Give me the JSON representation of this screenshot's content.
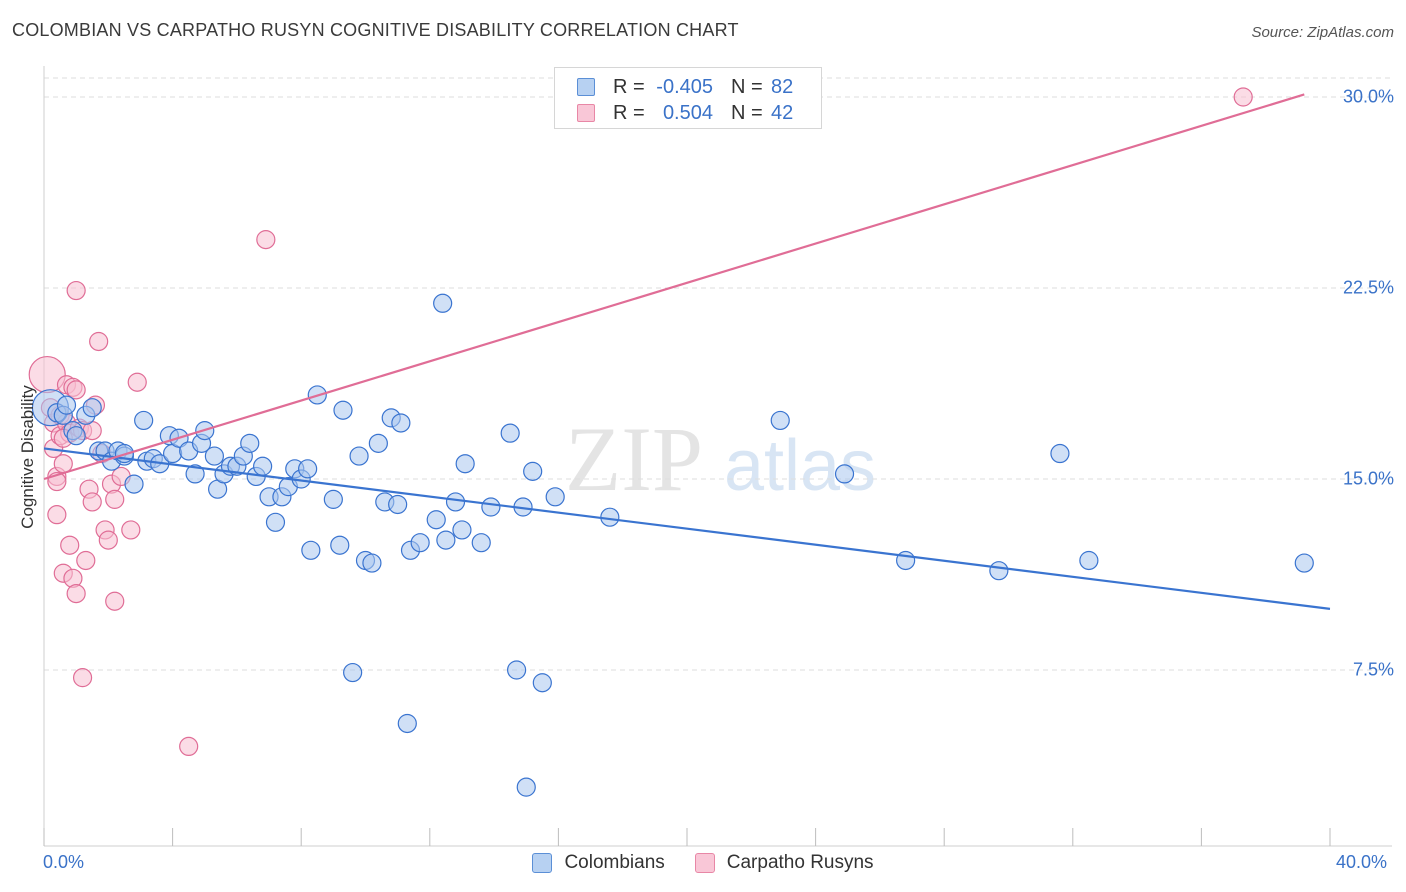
{
  "title": "COLOMBIAN VS CARPATHO RUSYN COGNITIVE DISABILITY CORRELATION CHART",
  "source": "Source: ZipAtlas.com",
  "watermark": {
    "zip": "ZIP",
    "atlas": "atlas"
  },
  "legend": {
    "rows": [
      {
        "r_label": "R =",
        "r_value": "-0.405",
        "n_label": "N =",
        "n_value": "82",
        "color": "#5b8fd6"
      },
      {
        "r_label": "R =",
        "r_value": "0.504",
        "n_label": "N =",
        "n_value": "42",
        "color": "#e887a6"
      }
    ]
  },
  "bottom_legend": [
    {
      "label": "Colombians",
      "color": "#5b8fd6"
    },
    {
      "label": "Carpatho Rusyns",
      "color": "#e887a6"
    }
  ],
  "colors": {
    "blue": "#3a74d0",
    "blue_fill": "#a9c6ee",
    "pink": "#e06d96",
    "pink_fill": "#f7bfd1",
    "grid": "#dedede",
    "tick_text": "#3a72c8"
  },
  "chart_data": {
    "type": "scatter",
    "title": "COLOMBIAN VS CARPATHO RUSYN COGNITIVE DISABILITY CORRELATION CHART",
    "xlabel": "",
    "ylabel": "Cognitive Disability",
    "xlim": [
      0,
      40
    ],
    "ylim": [
      0,
      31
    ],
    "x_tick_labels": [
      "0.0%",
      "40.0%"
    ],
    "y_ticks": [
      7.5,
      15.0,
      22.5,
      30.0
    ],
    "y_tick_labels": [
      "7.5%",
      "15.0%",
      "22.5%",
      "30.0%"
    ],
    "grid": true,
    "series": [
      {
        "name": "Colombians",
        "r": -0.405,
        "n": 82,
        "trend": {
          "x": [
            0,
            40
          ],
          "y": [
            16.2,
            9.9
          ]
        },
        "points": [
          [
            0.2,
            17.8
          ],
          [
            0.4,
            17.6
          ],
          [
            0.6,
            17.5
          ],
          [
            0.9,
            16.9
          ],
          [
            1.0,
            16.7
          ],
          [
            1.3,
            17.5
          ],
          [
            1.5,
            17.8
          ],
          [
            1.7,
            16.1
          ],
          [
            1.9,
            16.1
          ],
          [
            2.1,
            15.7
          ],
          [
            2.3,
            16.1
          ],
          [
            2.5,
            15.9
          ],
          [
            2.8,
            14.8
          ],
          [
            3.1,
            17.3
          ],
          [
            3.2,
            15.7
          ],
          [
            3.4,
            15.8
          ],
          [
            3.6,
            15.6
          ],
          [
            3.9,
            16.7
          ],
          [
            4.0,
            16.0
          ],
          [
            4.2,
            16.6
          ],
          [
            4.5,
            16.1
          ],
          [
            4.7,
            15.2
          ],
          [
            4.9,
            16.4
          ],
          [
            5.0,
            16.9
          ],
          [
            5.3,
            15.9
          ],
          [
            5.4,
            14.6
          ],
          [
            5.6,
            15.2
          ],
          [
            5.8,
            15.5
          ],
          [
            6.0,
            15.5
          ],
          [
            6.2,
            15.9
          ],
          [
            6.4,
            16.4
          ],
          [
            6.6,
            15.1
          ],
          [
            6.8,
            15.5
          ],
          [
            7.0,
            14.3
          ],
          [
            7.2,
            13.3
          ],
          [
            7.4,
            14.3
          ],
          [
            7.6,
            14.7
          ],
          [
            7.8,
            15.4
          ],
          [
            8.0,
            15.0
          ],
          [
            8.2,
            15.4
          ],
          [
            8.3,
            12.2
          ],
          [
            8.5,
            18.3
          ],
          [
            9.0,
            14.2
          ],
          [
            9.2,
            12.4
          ],
          [
            9.3,
            17.7
          ],
          [
            9.6,
            7.4
          ],
          [
            9.8,
            15.9
          ],
          [
            10.0,
            11.8
          ],
          [
            10.2,
            11.7
          ],
          [
            10.4,
            16.4
          ],
          [
            10.6,
            14.1
          ],
          [
            10.8,
            17.4
          ],
          [
            11.0,
            14.0
          ],
          [
            11.1,
            17.2
          ],
          [
            11.3,
            5.4
          ],
          [
            11.4,
            12.2
          ],
          [
            11.7,
            12.5
          ],
          [
            12.2,
            13.4
          ],
          [
            12.5,
            12.6
          ],
          [
            12.8,
            14.1
          ],
          [
            13.0,
            13.0
          ],
          [
            13.1,
            15.6
          ],
          [
            12.4,
            21.9
          ],
          [
            13.6,
            12.5
          ],
          [
            13.9,
            13.9
          ],
          [
            14.5,
            16.8
          ],
          [
            14.7,
            7.5
          ],
          [
            14.9,
            13.9
          ],
          [
            15.0,
            2.9
          ],
          [
            15.2,
            15.3
          ],
          [
            15.5,
            7.0
          ],
          [
            15.9,
            14.3
          ],
          [
            17.6,
            13.5
          ],
          [
            22.9,
            17.3
          ],
          [
            24.9,
            15.2
          ],
          [
            26.8,
            11.8
          ],
          [
            29.7,
            11.4
          ],
          [
            31.6,
            16.0
          ],
          [
            32.5,
            11.8
          ],
          [
            39.2,
            11.7
          ],
          [
            0.7,
            17.9
          ],
          [
            2.5,
            16.0
          ]
        ]
      },
      {
        "name": "Carpatho Rusyns",
        "r": 0.504,
        "n": 42,
        "trend": {
          "x": [
            0,
            39.2
          ],
          "y": [
            15.0,
            30.1
          ]
        },
        "points": [
          [
            0.1,
            19.1
          ],
          [
            0.2,
            17.8
          ],
          [
            0.3,
            17.2
          ],
          [
            0.3,
            16.2
          ],
          [
            0.4,
            15.1
          ],
          [
            0.4,
            13.6
          ],
          [
            0.5,
            17.5
          ],
          [
            0.5,
            16.7
          ],
          [
            0.6,
            15.6
          ],
          [
            0.6,
            11.3
          ],
          [
            0.7,
            18.7
          ],
          [
            0.7,
            17.2
          ],
          [
            0.8,
            16.8
          ],
          [
            0.8,
            12.4
          ],
          [
            0.9,
            18.6
          ],
          [
            0.9,
            11.1
          ],
          [
            1.0,
            22.4
          ],
          [
            1.0,
            10.5
          ],
          [
            1.1,
            17.0
          ],
          [
            1.2,
            16.9
          ],
          [
            1.3,
            11.8
          ],
          [
            1.4,
            14.6
          ],
          [
            1.5,
            14.1
          ],
          [
            1.6,
            17.9
          ],
          [
            1.8,
            16.0
          ],
          [
            1.9,
            13.0
          ],
          [
            2.0,
            12.6
          ],
          [
            2.1,
            14.8
          ],
          [
            2.2,
            10.2
          ],
          [
            2.2,
            14.2
          ],
          [
            2.4,
            15.1
          ],
          [
            2.7,
            13.0
          ],
          [
            2.9,
            18.8
          ],
          [
            1.7,
            20.4
          ],
          [
            1.2,
            7.2
          ],
          [
            4.5,
            4.5
          ],
          [
            6.9,
            24.4
          ],
          [
            37.3,
            30.0
          ],
          [
            0.4,
            14.9
          ],
          [
            0.6,
            16.6
          ],
          [
            1.0,
            18.5
          ],
          [
            1.5,
            16.9
          ]
        ]
      }
    ]
  }
}
